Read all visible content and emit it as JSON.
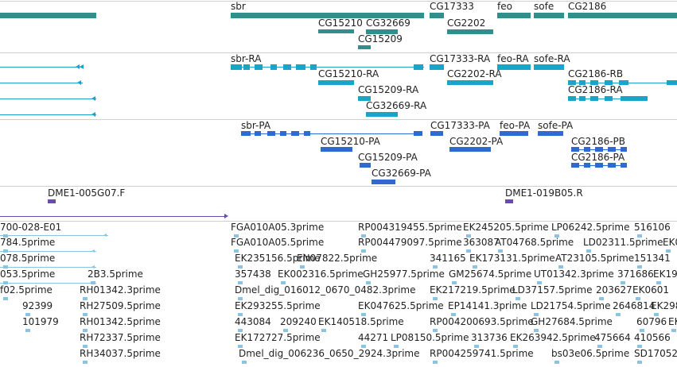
{
  "colors": {
    "gene": "#2f8f8a",
    "mrna": "#1aa5c8",
    "protein": "#2f6ad0",
    "clone": "#6a4bb3",
    "est": "#8cc3e3",
    "divider": "#cfcfcf"
  },
  "tracks": {
    "gene": {
      "labels": [
        "sbr",
        "CG15210",
        "CG32669",
        "CG15209",
        "CG17333",
        "CG2202",
        "feo",
        "sofe",
        "CG2186"
      ]
    },
    "mrna": {
      "labels": [
        "sbr-RA",
        "CG15210-RA",
        "CG15209-RA",
        "CG32669-RA",
        "CG17333-RA",
        "CG2202-RA",
        "feo-RA",
        "sofe-RA",
        "CG2186-RB",
        "CG2186-RA"
      ]
    },
    "protein": {
      "labels": [
        "sbr-PA",
        "CG15210-PA",
        "CG15209-PA",
        "CG32669-PA",
        "CG17333-PA",
        "CG2202-PA",
        "feo-PA",
        "sofe-PA",
        "CG2186-PB",
        "CG2186-PA"
      ]
    },
    "clone": {
      "labels": [
        "DME1-005G07.F",
        "DME1-019B05.R"
      ]
    },
    "est": {
      "labels": [
        "700-028-E01",
        "784.5prime",
        "078.5prime",
        "053.5prime",
        "2B3.5prime",
        "f02.5prime",
        "RH01342.3prime",
        "92399",
        "RH27509.5prime",
        "101979",
        "RH01342.5prime",
        "RH72337.5prime",
        "RH34037.5prime",
        "FGA010A05.3prime",
        "FGA010A05.5prime",
        "EK235156.5prime",
        "EN07822.5prime",
        "357438",
        "EK002316.5prime",
        "Dmel_dig_016012_0670_0482.3prime",
        "EK293255.5prime",
        "443084",
        "209240",
        "EK140518.5prime",
        "EK172727.5prime",
        "Dmel_dig_006236_0650_2924.3prime",
        "RP004319455.5prime",
        "RP004479097.5prime",
        "GH25977.5prime",
        "341165",
        "EK047625.5prime",
        "RP004200693.5prime",
        "44271",
        "LP08150.5prime",
        "RP004259741.5prime",
        "EK245205.5prime",
        "LP06242.5prime",
        "516106",
        "363087",
        "AT04768.5prime",
        "LD02311.5prime",
        "EK0",
        "EK173131.5prime",
        "AT23105.5prime",
        "151341",
        "GM25674.5prime",
        "UT01342.3prime",
        "371686",
        "EK19",
        "EK217219.5prime",
        "LD37157.5prime",
        "203627",
        "EK0601",
        "EP14141.3prime",
        "LD21754.5prime",
        "2646814",
        "EK298",
        "GH27684.5prime",
        "60796",
        "EK",
        "313736",
        "EK263942.5prime",
        "475664",
        "410566",
        "bs03e06.5prime",
        "SD17052"
      ]
    }
  }
}
